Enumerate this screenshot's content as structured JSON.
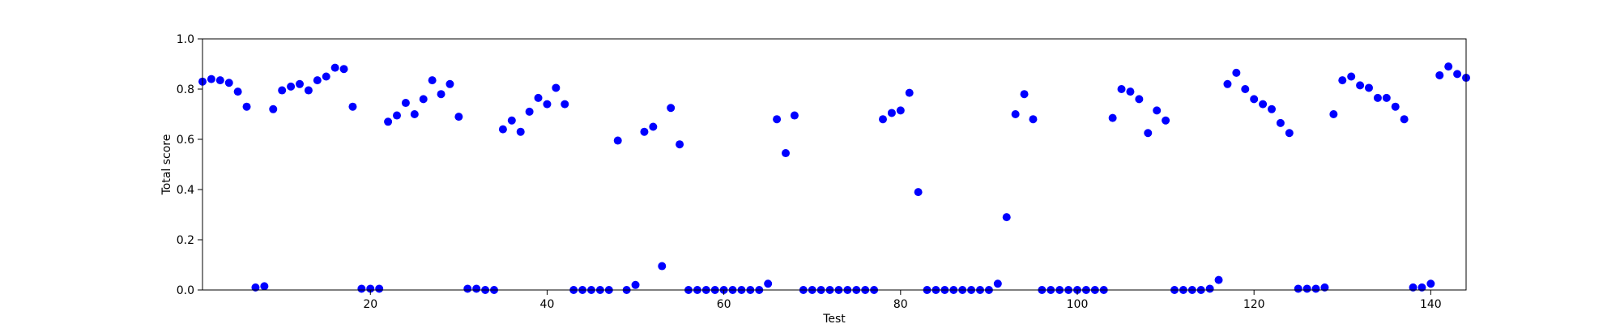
{
  "chart_data": {
    "type": "scatter",
    "title": "",
    "xlabel": "Test",
    "ylabel": "Total score",
    "xlim": [
      1,
      144
    ],
    "ylim": [
      0.0,
      1.0
    ],
    "xticks": [
      20,
      40,
      60,
      80,
      100,
      120,
      140
    ],
    "yticks": [
      0.0,
      0.2,
      0.4,
      0.6,
      0.8,
      1.0
    ],
    "xtick_labels": [
      "20",
      "40",
      "60",
      "80",
      "100",
      "120",
      "140"
    ],
    "ytick_labels": [
      "0.0",
      "0.2",
      "0.4",
      "0.6",
      "0.8",
      "1.0"
    ],
    "grid": false,
    "marker_color": "#0000ff",
    "series": [
      {
        "x": [
          1,
          2,
          3,
          4,
          5,
          6,
          7,
          8,
          9,
          10,
          11,
          12,
          13,
          14,
          15,
          16,
          17,
          18,
          19,
          20,
          21,
          22,
          23,
          24,
          25,
          26,
          27,
          28,
          29,
          30,
          31,
          32,
          33,
          34,
          35,
          36,
          37,
          38,
          39,
          40,
          41,
          42,
          43,
          44,
          45,
          46,
          47,
          48,
          49,
          50,
          51,
          52,
          53,
          54,
          55,
          56,
          57,
          58,
          59,
          60,
          61,
          62,
          63,
          64,
          65,
          66,
          67,
          68,
          69,
          70,
          71,
          72,
          73,
          74,
          75,
          76,
          77,
          78,
          79,
          80,
          81,
          82,
          83,
          84,
          85,
          86,
          87,
          88,
          89,
          90,
          91,
          92,
          93,
          94,
          95,
          96,
          97,
          98,
          99,
          100,
          101,
          102,
          103,
          104,
          105,
          106,
          107,
          108,
          109,
          110,
          111,
          112,
          113,
          114,
          115,
          116,
          117,
          118,
          119,
          120,
          121,
          122,
          123,
          124,
          125,
          126,
          127,
          128,
          129,
          130,
          131,
          132,
          133,
          134,
          135,
          136,
          137,
          138,
          139,
          140,
          141,
          142,
          143,
          144
        ],
        "y": [
          0.83,
          0.84,
          0.835,
          0.825,
          0.79,
          0.73,
          0.01,
          0.015,
          0.72,
          0.795,
          0.81,
          0.82,
          0.795,
          0.835,
          0.85,
          0.885,
          0.88,
          0.73,
          0.005,
          0.005,
          0.005,
          0.67,
          0.695,
          0.745,
          0.7,
          0.76,
          0.835,
          0.78,
          0.82,
          0.69,
          0.005,
          0.005,
          0.0,
          0.0,
          0.64,
          0.675,
          0.63,
          0.71,
          0.765,
          0.74,
          0.805,
          0.74,
          0.0,
          0.0,
          0.0,
          0.0,
          0.0,
          0.595,
          0.0,
          0.02,
          0.63,
          0.65,
          0.095,
          0.725,
          0.58,
          0.0,
          0.0,
          0.0,
          0.0,
          0.0,
          0.0,
          0.0,
          0.0,
          0.0,
          0.025,
          0.68,
          0.545,
          0.695,
          0.0,
          0.0,
          0.0,
          0.0,
          0.0,
          0.0,
          0.0,
          0.0,
          0.0,
          0.68,
          0.705,
          0.715,
          0.785,
          0.39,
          0.0,
          0.0,
          0.0,
          0.0,
          0.0,
          0.0,
          0.0,
          0.0,
          0.025,
          0.29,
          0.7,
          0.78,
          0.68,
          0.0,
          0.0,
          0.0,
          0.0,
          0.0,
          0.0,
          0.0,
          0.0,
          0.685,
          0.8,
          0.79,
          0.76,
          0.625,
          0.715,
          0.675,
          0.0,
          0.0,
          0.0,
          0.0,
          0.005,
          0.04,
          0.82,
          0.865,
          0.8,
          0.76,
          0.74,
          0.72,
          0.665,
          0.625,
          0.005,
          0.005,
          0.005,
          0.01,
          0.7,
          0.835,
          0.85,
          0.815,
          0.805,
          0.765,
          0.765,
          0.73,
          0.68,
          0.01,
          0.01,
          0.025,
          0.855,
          0.89,
          0.86,
          0.845
        ]
      }
    ]
  }
}
